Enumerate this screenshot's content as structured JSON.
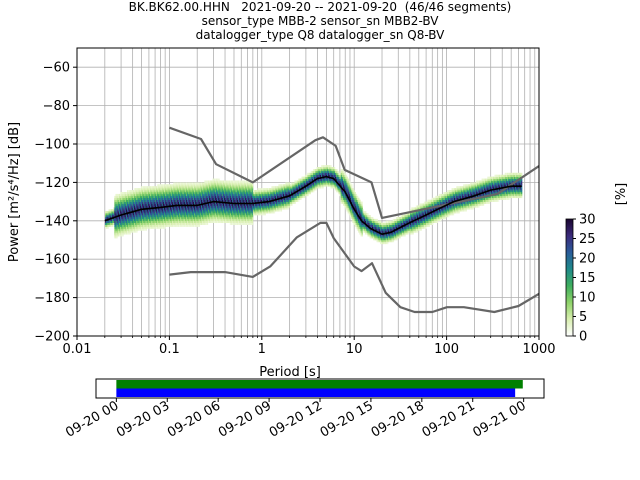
{
  "title_lines": [
    "BK.BK62.00.HHN   2021-09-20 -- 2021-09-20  (46/46 segments)",
    "sensor_type MBB-2 sensor_sn MBB2-BV",
    "datalogger_type Q8 datalogger_sn Q8-BV"
  ],
  "chart_data": {
    "type": "heatmap",
    "title": "BK.BK62.00.HHN   2021-09-20 -- 2021-09-20  (46/46 segments)",
    "xlabel": "Period [s]",
    "ylabel": "Power [m²/s⁴/Hz] [dB]",
    "x_scale": "log",
    "xlim": [
      0.01,
      1000
    ],
    "ylim": [
      -200,
      -50
    ],
    "x_tick_values": [
      0.01,
      0.1,
      1,
      10,
      100,
      1000
    ],
    "x_tick_labels": [
      "0.01",
      "0.1",
      "1",
      "10",
      "100",
      "1000"
    ],
    "y_tick_values": [
      -60,
      -80,
      -100,
      -120,
      -140,
      -160,
      -180,
      -200
    ],
    "y_tick_labels": [
      "−60",
      "−80",
      "−100",
      "−120",
      "−140",
      "−160",
      "−180",
      "−200"
    ],
    "grid": true,
    "colorbar": {
      "label": "[%]",
      "range": [
        0,
        30
      ],
      "tick_values": [
        0,
        5,
        10,
        15,
        20,
        25,
        30
      ],
      "tick_labels": [
        "0",
        "5",
        "10",
        "15",
        "20",
        "25",
        "30"
      ],
      "colors": [
        "#ffffff",
        "#d9efb0",
        "#8fd36a",
        "#3fae5e",
        "#1f8a8a",
        "#2a5c9a",
        "#3b2a7a",
        "#1a0530"
      ]
    },
    "series": [
      {
        "name": "nhnm",
        "color": "#666666",
        "x": [
          0.1,
          0.22,
          0.32,
          0.8,
          3.8,
          4.6,
          6.3,
          7.9,
          15.4,
          20,
          354.8,
          1000
        ],
        "y": [
          -91.5,
          -97.4,
          -110.5,
          -120.0,
          -98.0,
          -96.5,
          -101.0,
          -113.5,
          -120.0,
          -138.5,
          -126.0,
          -111.5
        ]
      },
      {
        "name": "nlnm",
        "color": "#666666",
        "x": [
          0.1,
          0.17,
          0.4,
          0.8,
          1.24,
          2.4,
          4.3,
          5.0,
          6.0,
          10.0,
          12.0,
          15.6,
          21.9,
          31.6,
          45.0,
          70.0,
          101.0,
          154.0,
          328.0,
          600.0,
          1000
        ],
        "y": [
          -168.0,
          -166.7,
          -166.7,
          -169.2,
          -163.7,
          -148.6,
          -141.1,
          -141.1,
          -149.0,
          -163.8,
          -166.2,
          -162.1,
          -177.5,
          -185.0,
          -187.5,
          -187.5,
          -185.0,
          -185.0,
          -187.5,
          -184.4,
          -178.0
        ]
      },
      {
        "name": "mode",
        "color": "#000000",
        "x": [
          0.02,
          0.03,
          0.05,
          0.08,
          0.12,
          0.2,
          0.3,
          0.5,
          0.8,
          1.2,
          2,
          3,
          4,
          5,
          6,
          8,
          10,
          12,
          15,
          20,
          25,
          30,
          40,
          60,
          80,
          120,
          200,
          300,
          500,
          650
        ],
        "y": [
          -140,
          -137,
          -134,
          -133,
          -132,
          -132,
          -130,
          -131,
          -131,
          -130,
          -127,
          -122,
          -118,
          -117,
          -118,
          -125,
          -134,
          -140,
          -144,
          -147,
          -146,
          -144,
          -141,
          -137,
          -134,
          -130,
          -127,
          -124,
          -122,
          -122
        ]
      }
    ]
  },
  "timeline": {
    "tick_labels": [
      "09-20 00",
      "09-20 03",
      "09-20 06",
      "09-20 09",
      "09-20 12",
      "09-20 15",
      "09-20 18",
      "09-20 21",
      "09-21 00"
    ],
    "tick_hours": [
      0,
      3,
      6,
      9,
      12,
      15,
      18,
      21,
      24
    ],
    "range_hours": [
      -1.2,
      25.2
    ],
    "bars": [
      {
        "name": "data availability",
        "color": "#008000",
        "start_hours": 0,
        "end_hours": 23.95
      },
      {
        "name": "psd segments",
        "color": "#0000ff",
        "start_hours": 0,
        "end_hours": 23.5
      }
    ]
  }
}
